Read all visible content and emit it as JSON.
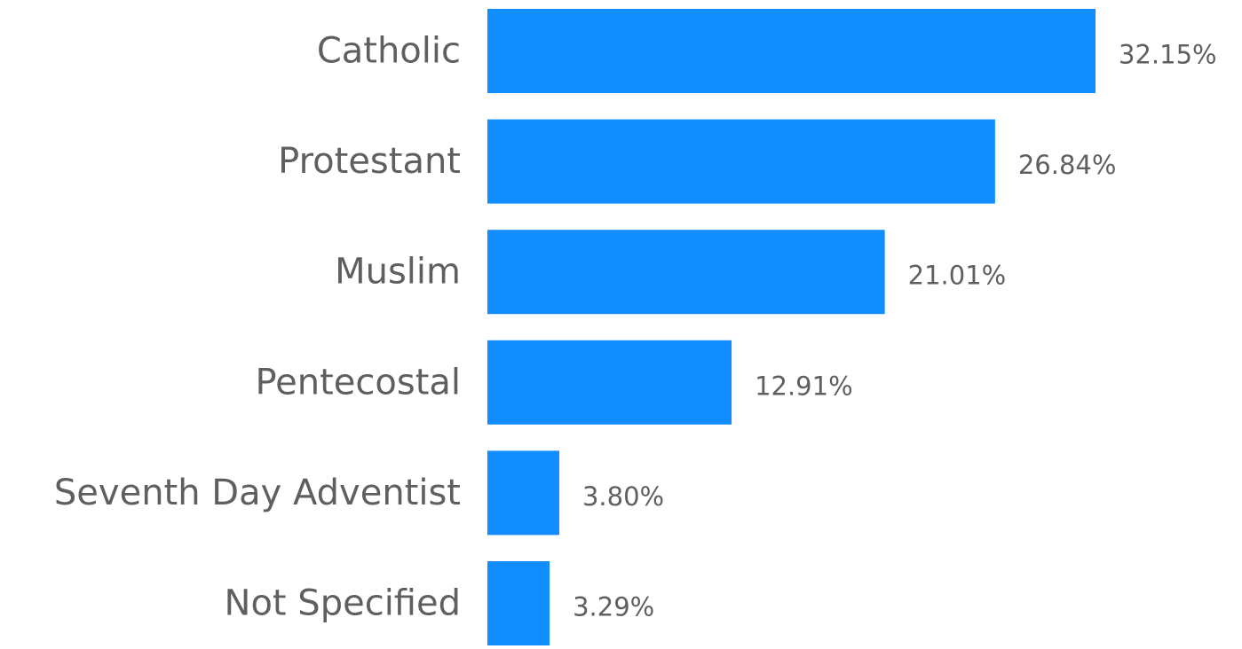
{
  "chart_data": {
    "type": "bar",
    "orientation": "horizontal",
    "categories": [
      "Catholic",
      "Protestant",
      "Muslim",
      "Pentecostal",
      "Seventh Day Adventist",
      "Not Specified"
    ],
    "values": [
      32.15,
      26.84,
      21.01,
      12.91,
      3.8,
      3.29
    ],
    "value_labels": [
      "32.15%",
      "26.84%",
      "21.01%",
      "12.91%",
      "3.80%",
      "3.29%"
    ],
    "title": "",
    "xlabel": "",
    "ylabel": "",
    "xlim": [
      0,
      32.15
    ],
    "grid": false,
    "legend": "none",
    "bar_color": "#118dff",
    "text_color": "#5f5f5f"
  }
}
